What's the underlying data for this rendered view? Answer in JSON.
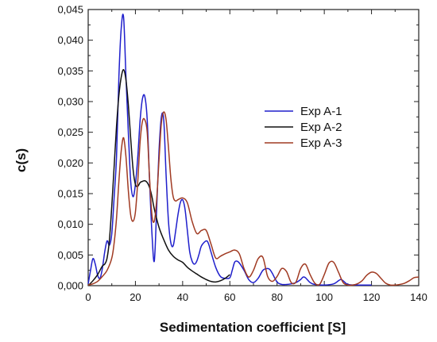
{
  "chart_data": {
    "type": "line",
    "title": "",
    "xlabel": "Sedimentation coefficient [S]",
    "ylabel": "c(s)",
    "xlim": [
      0,
      140
    ],
    "ylim": [
      0,
      0.045
    ],
    "x_ticks": [
      "0",
      "20",
      "40",
      "60",
      "80",
      "100",
      "120",
      "140"
    ],
    "x_tick_values": [
      0,
      20,
      40,
      60,
      80,
      100,
      120,
      140
    ],
    "y_ticks": [
      "0,000",
      "0,005",
      "0,010",
      "0,015",
      "0,020",
      "0,025",
      "0,030",
      "0,035",
      "0,040",
      "0,045"
    ],
    "y_tick_values": [
      0,
      0.005,
      0.01,
      0.015,
      0.02,
      0.025,
      0.03,
      0.035,
      0.04,
      0.045
    ],
    "grid": false,
    "legend_position": "right",
    "series": [
      {
        "name": "Exp A-1",
        "color": "#1f1fcc",
        "x": [
          0,
          1,
          2,
          3,
          4,
          5,
          6,
          7,
          8,
          9,
          10,
          11,
          12,
          13,
          14,
          15,
          16,
          17,
          18,
          19,
          20,
          21,
          22,
          23,
          24,
          25,
          26,
          27,
          28,
          29,
          30,
          31,
          32,
          33,
          34,
          35,
          36,
          37,
          38,
          39,
          40,
          41,
          42,
          43,
          44,
          45,
          46,
          47,
          48,
          50,
          51,
          52,
          54,
          56,
          58,
          60,
          61,
          62,
          63,
          64,
          66,
          68,
          70,
          72,
          74,
          76,
          77,
          78,
          80,
          82,
          84,
          86,
          88,
          90,
          91,
          92,
          94,
          96,
          100,
          104,
          106,
          107,
          108,
          110,
          114,
          118,
          120
        ],
        "y": [
          0.0003,
          0.0025,
          0.0044,
          0.0035,
          0.0017,
          0.0012,
          0.0028,
          0.0055,
          0.0073,
          0.0066,
          0.0085,
          0.0145,
          0.021,
          0.034,
          0.042,
          0.0437,
          0.034,
          0.025,
          0.017,
          0.0145,
          0.0165,
          0.021,
          0.027,
          0.0305,
          0.0308,
          0.027,
          0.017,
          0.0085,
          0.004,
          0.0125,
          0.022,
          0.0275,
          0.027,
          0.018,
          0.0105,
          0.007,
          0.0065,
          0.0088,
          0.0115,
          0.0135,
          0.014,
          0.0125,
          0.009,
          0.0055,
          0.004,
          0.0035,
          0.004,
          0.0052,
          0.0065,
          0.0073,
          0.0068,
          0.0055,
          0.003,
          0.0015,
          0.0012,
          0.0013,
          0.0025,
          0.0038,
          0.004,
          0.0037,
          0.0025,
          0.001,
          0.0005,
          0.0012,
          0.0025,
          0.0028,
          0.0026,
          0.002,
          0.0006,
          0.0002,
          0.0002,
          0.0003,
          0.0005,
          0.001,
          0.0014,
          0.0013,
          0.0005,
          0.0002,
          0.0001,
          0.0003,
          0.0008,
          0.001,
          0.0008,
          0.0002,
          0.0001,
          0.0001,
          0.0001
        ]
      },
      {
        "name": "Exp A-2",
        "color": "#111111",
        "x": [
          0,
          2,
          4,
          6,
          7,
          8,
          9,
          10,
          11,
          12,
          13,
          14,
          15,
          16,
          17,
          18,
          19,
          20,
          21,
          22,
          23,
          24,
          25,
          26,
          27,
          28,
          30,
          32,
          34,
          36,
          38,
          40,
          42,
          44,
          46,
          48,
          50,
          52,
          54,
          56,
          58,
          60
        ],
        "y": [
          0.0,
          0.0008,
          0.0018,
          0.0032,
          0.0035,
          0.0045,
          0.0075,
          0.013,
          0.0195,
          0.026,
          0.031,
          0.034,
          0.0352,
          0.0335,
          0.0295,
          0.024,
          0.019,
          0.0165,
          0.0162,
          0.0168,
          0.017,
          0.0171,
          0.0168,
          0.016,
          0.0145,
          0.0125,
          0.0095,
          0.0075,
          0.0058,
          0.0048,
          0.0042,
          0.0038,
          0.003,
          0.0024,
          0.0019,
          0.0014,
          0.001,
          0.0007,
          0.0006,
          0.0008,
          0.0012,
          0.0018
        ]
      },
      {
        "name": "Exp A-3",
        "color": "#a03a22",
        "x": [
          0,
          2,
          4,
          6,
          8,
          10,
          11,
          12,
          13,
          14,
          15,
          16,
          17,
          18,
          19,
          20,
          21,
          22,
          23,
          24,
          25,
          26,
          27,
          28,
          29,
          30,
          31,
          32,
          33,
          34,
          35,
          36,
          37,
          38,
          40,
          42,
          44,
          46,
          48,
          50,
          52,
          54,
          56,
          58,
          60,
          62,
          64,
          66,
          68,
          70,
          72,
          74,
          76,
          78,
          80,
          82,
          84,
          86,
          88,
          90,
          92,
          94,
          96,
          98,
          100,
          102,
          104,
          106,
          108,
          110,
          112,
          114,
          116,
          118,
          120,
          122,
          124,
          126,
          128,
          130,
          132,
          134,
          136,
          138,
          140
        ],
        "y": [
          0.0001,
          0.0003,
          0.0007,
          0.0015,
          0.0025,
          0.0045,
          0.007,
          0.011,
          0.017,
          0.022,
          0.0241,
          0.021,
          0.0155,
          0.0115,
          0.0105,
          0.012,
          0.017,
          0.0235,
          0.0268,
          0.027,
          0.025,
          0.0175,
          0.0115,
          0.0105,
          0.014,
          0.0205,
          0.0265,
          0.0283,
          0.027,
          0.0225,
          0.0175,
          0.0145,
          0.0138,
          0.014,
          0.0143,
          0.0135,
          0.0105,
          0.0085,
          0.009,
          0.009,
          0.0068,
          0.0045,
          0.0048,
          0.0052,
          0.0055,
          0.0058,
          0.0052,
          0.0028,
          0.0014,
          0.0025,
          0.0044,
          0.0046,
          0.0015,
          0.0007,
          0.0015,
          0.0028,
          0.0023,
          0.0005,
          0.0006,
          0.0028,
          0.0035,
          0.0018,
          0.0004,
          0.0002,
          0.0018,
          0.0037,
          0.0038,
          0.0022,
          0.0005,
          0.0001,
          0.0001,
          0.0003,
          0.0008,
          0.0017,
          0.0022,
          0.002,
          0.0012,
          0.0004,
          0.0001,
          0.0001,
          0.0002,
          0.0004,
          0.0008,
          0.0013,
          0.0014
        ]
      }
    ]
  }
}
